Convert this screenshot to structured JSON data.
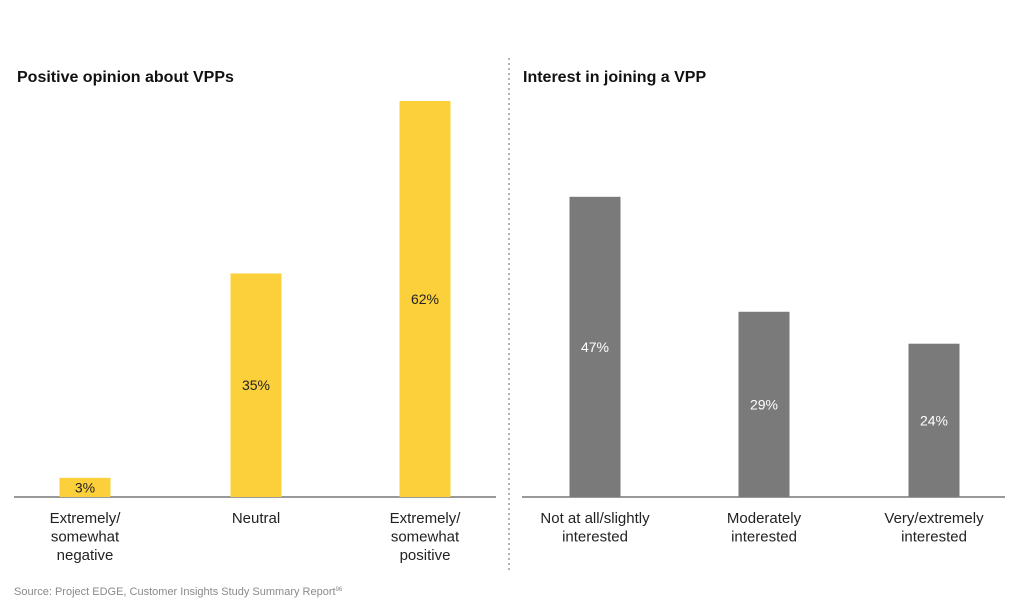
{
  "chart_data": [
    {
      "type": "bar",
      "title": "Positive opinion about VPPs",
      "categories": [
        [
          "Extremely/",
          "somewhat",
          "negative"
        ],
        [
          "Neutral"
        ],
        [
          "Extremely/",
          "somewhat",
          "positive"
        ]
      ],
      "values": [
        3,
        35,
        62
      ],
      "value_labels": [
        "3%",
        "35%",
        "62%"
      ],
      "unit": "%",
      "ylim": [
        0,
        62
      ],
      "color": "#FCD03A",
      "label_color": "#222222",
      "grid": false
    },
    {
      "type": "bar",
      "title": "Interest in joining a VPP",
      "categories": [
        [
          "Not at all/slightly",
          "interested"
        ],
        [
          "Moderately",
          "interested"
        ],
        [
          "Very/extremely",
          "interested"
        ]
      ],
      "values": [
        47,
        29,
        24
      ],
      "value_labels": [
        "47%",
        "29%",
        "24%"
      ],
      "unit": "%",
      "ylim": [
        0,
        62
      ],
      "color": "#7A7A7A",
      "label_color": "#ffffff",
      "grid": false
    }
  ],
  "footer": {
    "source": "Source: Project EDGE, Customer Insights Study Summary Report",
    "source_note": "96"
  }
}
